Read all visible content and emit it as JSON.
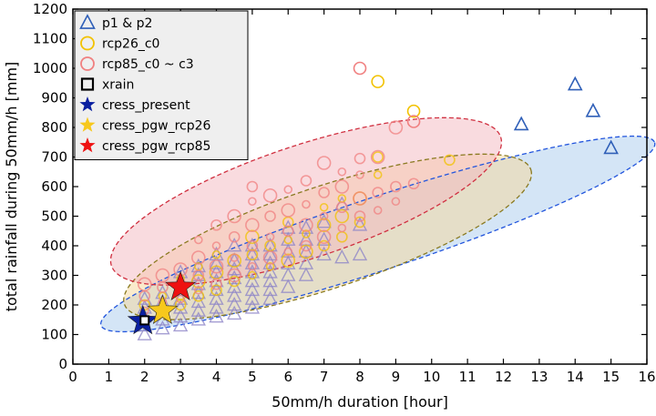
{
  "chart_data": {
    "type": "scatter",
    "xlabel": "50mm/h duration [hour]",
    "ylabel": "total rainfall during 50mm/h [mm]",
    "xlim": [
      0,
      16
    ],
    "ylim": [
      0,
      1200
    ],
    "xticks": [
      "0",
      "1",
      "2",
      "3",
      "4",
      "5",
      "6",
      "7",
      "8",
      "9",
      "10",
      "11",
      "12",
      "13",
      "14",
      "15",
      "16"
    ],
    "yticks": [
      "0",
      "100",
      "200",
      "300",
      "400",
      "500",
      "600",
      "700",
      "800",
      "900",
      "1000",
      "1100",
      "1200"
    ],
    "grid": false,
    "legend_position": "top-left",
    "legend": [
      {
        "key": "p1p2",
        "label": "p1 & p2",
        "marker": "triangle-open",
        "color": "#2f5fb8"
      },
      {
        "key": "rcp26",
        "label": "rcp26_c0",
        "marker": "circle-open",
        "color": "#f2c200"
      },
      {
        "key": "rcp85",
        "label": "rcp85_c0 ~ c3",
        "marker": "circle-open",
        "color": "#f08080"
      },
      {
        "key": "xrain",
        "label": "xrain",
        "marker": "square-open",
        "color": "#000000"
      },
      {
        "key": "cress_present",
        "label": "cress_present",
        "marker": "star",
        "color": "#0a1fa0"
      },
      {
        "key": "cress_pgw_rcp26",
        "label": "cress_pgw_rcp26",
        "marker": "star",
        "color": "#f7c81c"
      },
      {
        "key": "cress_pgw_rcp85",
        "label": "cress_pgw_rcp85",
        "marker": "star",
        "color": "#ee1111"
      }
    ],
    "ellipses": [
      {
        "name": "p1 & p2 range",
        "center": [
          8.5,
          440
        ],
        "x_extent": [
          1,
          15.5
        ],
        "color": "#2255dd",
        "fill": "#aaccee"
      },
      {
        "name": "rcp26 range",
        "center": [
          7.1,
          430
        ],
        "x_extent": [
          1.4,
          12.3
        ],
        "color": "#8a7a20",
        "fill": "#f6d79a"
      },
      {
        "name": "rcp85 range",
        "center": [
          6.5,
          550
        ],
        "x_extent": [
          1.2,
          11.4
        ],
        "color": "#d03040",
        "fill": "#f4b8c0"
      }
    ],
    "series": [
      {
        "name": "p1 & p2",
        "key": "p1p2",
        "points": [
          [
            2,
            100
          ],
          [
            2,
            130
          ],
          [
            2,
            160
          ],
          [
            2,
            190
          ],
          [
            2,
            220
          ],
          [
            2.5,
            120
          ],
          [
            2.5,
            150
          ],
          [
            2.5,
            180
          ],
          [
            2.5,
            210
          ],
          [
            2.5,
            240
          ],
          [
            3,
            130
          ],
          [
            3,
            160
          ],
          [
            3,
            190
          ],
          [
            3,
            220
          ],
          [
            3,
            250
          ],
          [
            3,
            280
          ],
          [
            3,
            310
          ],
          [
            3.5,
            150
          ],
          [
            3.5,
            180
          ],
          [
            3.5,
            210
          ],
          [
            3.5,
            240
          ],
          [
            3.5,
            270
          ],
          [
            3.5,
            300
          ],
          [
            3.5,
            330
          ],
          [
            4,
            160
          ],
          [
            4,
            190
          ],
          [
            4,
            220
          ],
          [
            4,
            250
          ],
          [
            4,
            280
          ],
          [
            4,
            310
          ],
          [
            4,
            340
          ],
          [
            4,
            370
          ],
          [
            4.5,
            170
          ],
          [
            4.5,
            200
          ],
          [
            4.5,
            230
          ],
          [
            4.5,
            260
          ],
          [
            4.5,
            290
          ],
          [
            4.5,
            320
          ],
          [
            4.5,
            350
          ],
          [
            4.5,
            400
          ],
          [
            5,
            190
          ],
          [
            5,
            220
          ],
          [
            5,
            250
          ],
          [
            5,
            280
          ],
          [
            5,
            310
          ],
          [
            5,
            340
          ],
          [
            5,
            370
          ],
          [
            5,
            400
          ],
          [
            5.5,
            220
          ],
          [
            5.5,
            250
          ],
          [
            5.5,
            280
          ],
          [
            5.5,
            310
          ],
          [
            5.5,
            340
          ],
          [
            5.5,
            370
          ],
          [
            5.5,
            400
          ],
          [
            6,
            260
          ],
          [
            6,
            300
          ],
          [
            6,
            340
          ],
          [
            6,
            380
          ],
          [
            6,
            420
          ],
          [
            6,
            460
          ],
          [
            6.5,
            300
          ],
          [
            6.5,
            340
          ],
          [
            6.5,
            380
          ],
          [
            6.5,
            420
          ],
          [
            6.5,
            460
          ],
          [
            7,
            370
          ],
          [
            7,
            420
          ],
          [
            7,
            480
          ],
          [
            7.5,
            360
          ],
          [
            7.5,
            540
          ],
          [
            8,
            370
          ],
          [
            8,
            470
          ],
          [
            12.5,
            810
          ],
          [
            14,
            945
          ],
          [
            14.5,
            855
          ],
          [
            15,
            730
          ]
        ]
      },
      {
        "name": "rcp26_c0",
        "key": "rcp26",
        "points": [
          [
            2,
            150
          ],
          [
            2,
            200
          ],
          [
            2.5,
            180
          ],
          [
            2.5,
            230
          ],
          [
            3,
            200
          ],
          [
            3,
            240
          ],
          [
            3,
            290
          ],
          [
            3.5,
            230
          ],
          [
            3.5,
            280
          ],
          [
            3.5,
            330
          ],
          [
            4,
            250
          ],
          [
            4,
            310
          ],
          [
            4,
            370
          ],
          [
            4.5,
            280
          ],
          [
            4.5,
            350
          ],
          [
            5,
            300
          ],
          [
            5,
            370
          ],
          [
            5,
            430
          ],
          [
            5.5,
            330
          ],
          [
            5.5,
            400
          ],
          [
            6,
            350
          ],
          [
            6,
            420
          ],
          [
            6,
            480
          ],
          [
            6.5,
            380
          ],
          [
            6.5,
            440
          ],
          [
            7,
            400
          ],
          [
            7,
            470
          ],
          [
            7,
            530
          ],
          [
            7.5,
            430
          ],
          [
            7.5,
            500
          ],
          [
            7.5,
            560
          ],
          [
            8,
            480
          ],
          [
            8,
            560
          ],
          [
            8.5,
            640
          ],
          [
            8.5,
            700
          ],
          [
            8.5,
            955
          ],
          [
            9.5,
            855
          ],
          [
            10.5,
            690
          ]
        ]
      },
      {
        "name": "rcp85_c0 ~ c3",
        "key": "rcp85",
        "points": [
          [
            2,
            180
          ],
          [
            2,
            230
          ],
          [
            2,
            270
          ],
          [
            2.5,
            210
          ],
          [
            2.5,
            260
          ],
          [
            2.5,
            300
          ],
          [
            3,
            220
          ],
          [
            3,
            270
          ],
          [
            3,
            320
          ],
          [
            3.5,
            250
          ],
          [
            3.5,
            300
          ],
          [
            3.5,
            360
          ],
          [
            3.5,
            420
          ],
          [
            4,
            270
          ],
          [
            4,
            330
          ],
          [
            4,
            400
          ],
          [
            4,
            470
          ],
          [
            4.5,
            300
          ],
          [
            4.5,
            360
          ],
          [
            4.5,
            430
          ],
          [
            4.5,
            500
          ],
          [
            5,
            330
          ],
          [
            5,
            400
          ],
          [
            5,
            470
          ],
          [
            5,
            550
          ],
          [
            5,
            600
          ],
          [
            5.5,
            360
          ],
          [
            5.5,
            430
          ],
          [
            5.5,
            500
          ],
          [
            5.5,
            570
          ],
          [
            6,
            380
          ],
          [
            6,
            450
          ],
          [
            6,
            520
          ],
          [
            6,
            590
          ],
          [
            6.5,
            400
          ],
          [
            6.5,
            470
          ],
          [
            6.5,
            540
          ],
          [
            6.5,
            620
          ],
          [
            7,
            430
          ],
          [
            7,
            500
          ],
          [
            7,
            580
          ],
          [
            7,
            680
          ],
          [
            7.5,
            460
          ],
          [
            7.5,
            530
          ],
          [
            7.5,
            600
          ],
          [
            7.5,
            650
          ],
          [
            8,
            500
          ],
          [
            8,
            560
          ],
          [
            8,
            640
          ],
          [
            8,
            695
          ],
          [
            8,
            1000
          ],
          [
            8.5,
            520
          ],
          [
            8.5,
            580
          ],
          [
            8.5,
            700
          ],
          [
            9,
            550
          ],
          [
            9,
            600
          ],
          [
            9,
            800
          ],
          [
            9.5,
            820
          ],
          [
            9.5,
            610
          ]
        ]
      },
      {
        "name": "xrain",
        "key": "xrain",
        "points": [
          [
            2,
            148
          ]
        ]
      },
      {
        "name": "cress_present",
        "key": "cress_present",
        "points": [
          [
            1.95,
            145
          ]
        ]
      },
      {
        "name": "cress_pgw_rcp26",
        "key": "cress_pgw_rcp26",
        "points": [
          [
            2.5,
            180
          ]
        ]
      },
      {
        "name": "cress_pgw_rcp85",
        "key": "cress_pgw_rcp85",
        "points": [
          [
            3,
            260
          ]
        ]
      }
    ]
  }
}
